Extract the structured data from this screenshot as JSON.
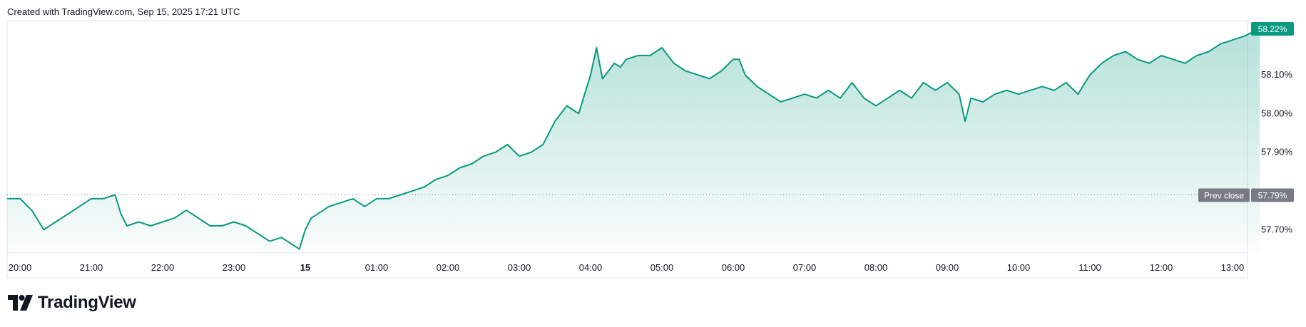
{
  "caption": "Created with TradingView.com, Sep 15, 2025 17:21 UTC",
  "brand": {
    "name": "TradingView",
    "icon": "tradingview-logo-icon"
  },
  "colors": {
    "line": "#089981",
    "fill_top": "#089981",
    "prev_close_badge": "#787b86",
    "last_badge": "#089981"
  },
  "chart_data": {
    "type": "area",
    "y_unit": "%",
    "ylim": [
      57.64,
      58.24
    ],
    "yticks": [
      "58.10%",
      "58.00%",
      "57.90%",
      "57.70%"
    ],
    "ytick_values": [
      58.1,
      58.0,
      57.9,
      57.7
    ],
    "xticks": [
      {
        "label": "20:00",
        "t": 0,
        "bold": false
      },
      {
        "label": "21:00",
        "t": 60,
        "bold": false
      },
      {
        "label": "22:00",
        "t": 120,
        "bold": false
      },
      {
        "label": "23:00",
        "t": 180,
        "bold": false
      },
      {
        "label": "15",
        "t": 240,
        "bold": true
      },
      {
        "label": "01:00",
        "t": 300,
        "bold": false
      },
      {
        "label": "02:00",
        "t": 360,
        "bold": false
      },
      {
        "label": "03:00",
        "t": 420,
        "bold": false
      },
      {
        "label": "04:00",
        "t": 480,
        "bold": false
      },
      {
        "label": "05:00",
        "t": 540,
        "bold": false
      },
      {
        "label": "06:00",
        "t": 600,
        "bold": false
      },
      {
        "label": "07:00",
        "t": 660,
        "bold": false
      },
      {
        "label": "08:00",
        "t": 720,
        "bold": false
      },
      {
        "label": "09:00",
        "t": 780,
        "bold": false
      },
      {
        "label": "10:00",
        "t": 840,
        "bold": false
      },
      {
        "label": "11:00",
        "t": 900,
        "bold": false
      },
      {
        "label": "12:00",
        "t": 960,
        "bold": false
      },
      {
        "label": "13:00",
        "t": 1020,
        "bold": false
      }
    ],
    "x_minutes": [
      0,
      10,
      20,
      30,
      40,
      50,
      60,
      70,
      80,
      85,
      90,
      100,
      110,
      120,
      130,
      140,
      150,
      160,
      170,
      180,
      190,
      200,
      210,
      220,
      230,
      235,
      240,
      245,
      250,
      260,
      270,
      280,
      290,
      300,
      310,
      320,
      330,
      340,
      350,
      360,
      370,
      380,
      390,
      400,
      410,
      420,
      430,
      440,
      450,
      460,
      470,
      480,
      485,
      490,
      500,
      505,
      510,
      520,
      530,
      540,
      550,
      560,
      570,
      580,
      590,
      600,
      605,
      610,
      620,
      630,
      640,
      650,
      660,
      670,
      680,
      690,
      700,
      710,
      720,
      730,
      740,
      750,
      760,
      770,
      780,
      790,
      795,
      800,
      810,
      820,
      830,
      840,
      850,
      860,
      870,
      880,
      890,
      900,
      910,
      920,
      930,
      940,
      950,
      960,
      970,
      980,
      990,
      1000,
      1010,
      1020,
      1030,
      1043
    ],
    "values": [
      57.78,
      57.75,
      57.7,
      57.72,
      57.74,
      57.76,
      57.78,
      57.78,
      57.79,
      57.74,
      57.71,
      57.72,
      57.71,
      57.72,
      57.73,
      57.75,
      57.73,
      57.71,
      57.71,
      57.72,
      57.71,
      57.69,
      57.67,
      57.68,
      57.66,
      57.65,
      57.7,
      57.73,
      57.74,
      57.76,
      57.77,
      57.78,
      57.76,
      57.78,
      57.78,
      57.79,
      57.8,
      57.81,
      57.83,
      57.84,
      57.86,
      57.87,
      57.89,
      57.9,
      57.92,
      57.89,
      57.9,
      57.92,
      57.98,
      58.02,
      58.0,
      58.1,
      58.17,
      58.09,
      58.13,
      58.12,
      58.14,
      58.15,
      58.15,
      58.17,
      58.13,
      58.11,
      58.1,
      58.09,
      58.11,
      58.14,
      58.14,
      58.1,
      58.07,
      58.05,
      58.03,
      58.04,
      58.05,
      58.04,
      58.06,
      58.04,
      58.08,
      58.04,
      58.02,
      58.04,
      58.06,
      58.04,
      58.08,
      58.06,
      58.08,
      58.05,
      57.98,
      58.04,
      58.03,
      58.05,
      58.06,
      58.05,
      58.06,
      58.07,
      58.06,
      58.08,
      58.05,
      58.1,
      58.13,
      58.15,
      58.16,
      58.14,
      58.13,
      58.15,
      58.14,
      58.13,
      58.15,
      58.16,
      58.18,
      58.19,
      58.2,
      58.22
    ],
    "prev_close": {
      "label": "Prev close",
      "value_text": "57.79%",
      "value": 57.79
    },
    "last": {
      "value_text": "58.22%",
      "value": 58.22
    },
    "grid": false
  }
}
